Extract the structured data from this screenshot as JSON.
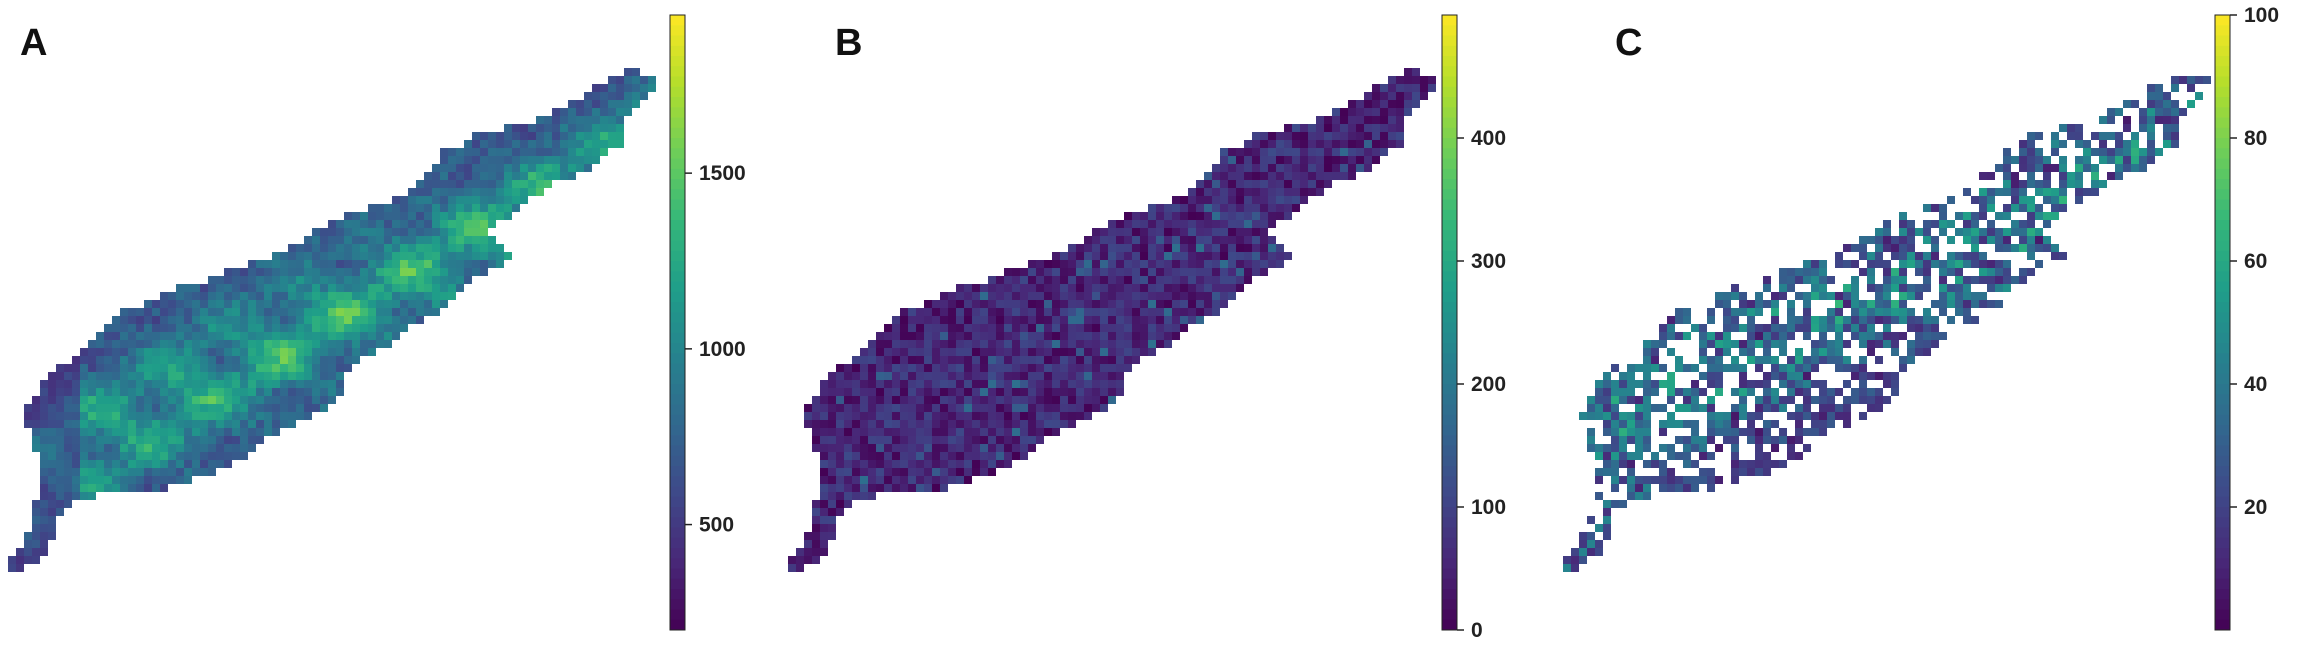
{
  "chart_data": [
    {
      "type": "heatmap",
      "panel_label": "A",
      "colormap": "viridis",
      "colorbar": {
        "min": 200,
        "max": 1950,
        "ticks": [
          500,
          1000,
          1500
        ]
      },
      "pattern": "elevation"
    },
    {
      "type": "heatmap",
      "panel_label": "B",
      "colormap": "viridis",
      "colorbar": {
        "min": 0,
        "max": 500,
        "ticks": [
          0,
          100,
          200,
          300,
          400
        ]
      },
      "pattern": "low_noise"
    },
    {
      "type": "heatmap",
      "panel_label": "C",
      "colormap": "viridis",
      "colorbar": {
        "min": 0,
        "max": 100,
        "ticks": [
          20,
          40,
          60,
          80,
          100
        ]
      },
      "pattern": "sparse_cover"
    }
  ],
  "colors": {
    "viridis": [
      "#440154",
      "#482878",
      "#3e4989",
      "#31688e",
      "#26828e",
      "#1f9e89",
      "#35b779",
      "#6ece58",
      "#b5de2b",
      "#fde725"
    ]
  }
}
